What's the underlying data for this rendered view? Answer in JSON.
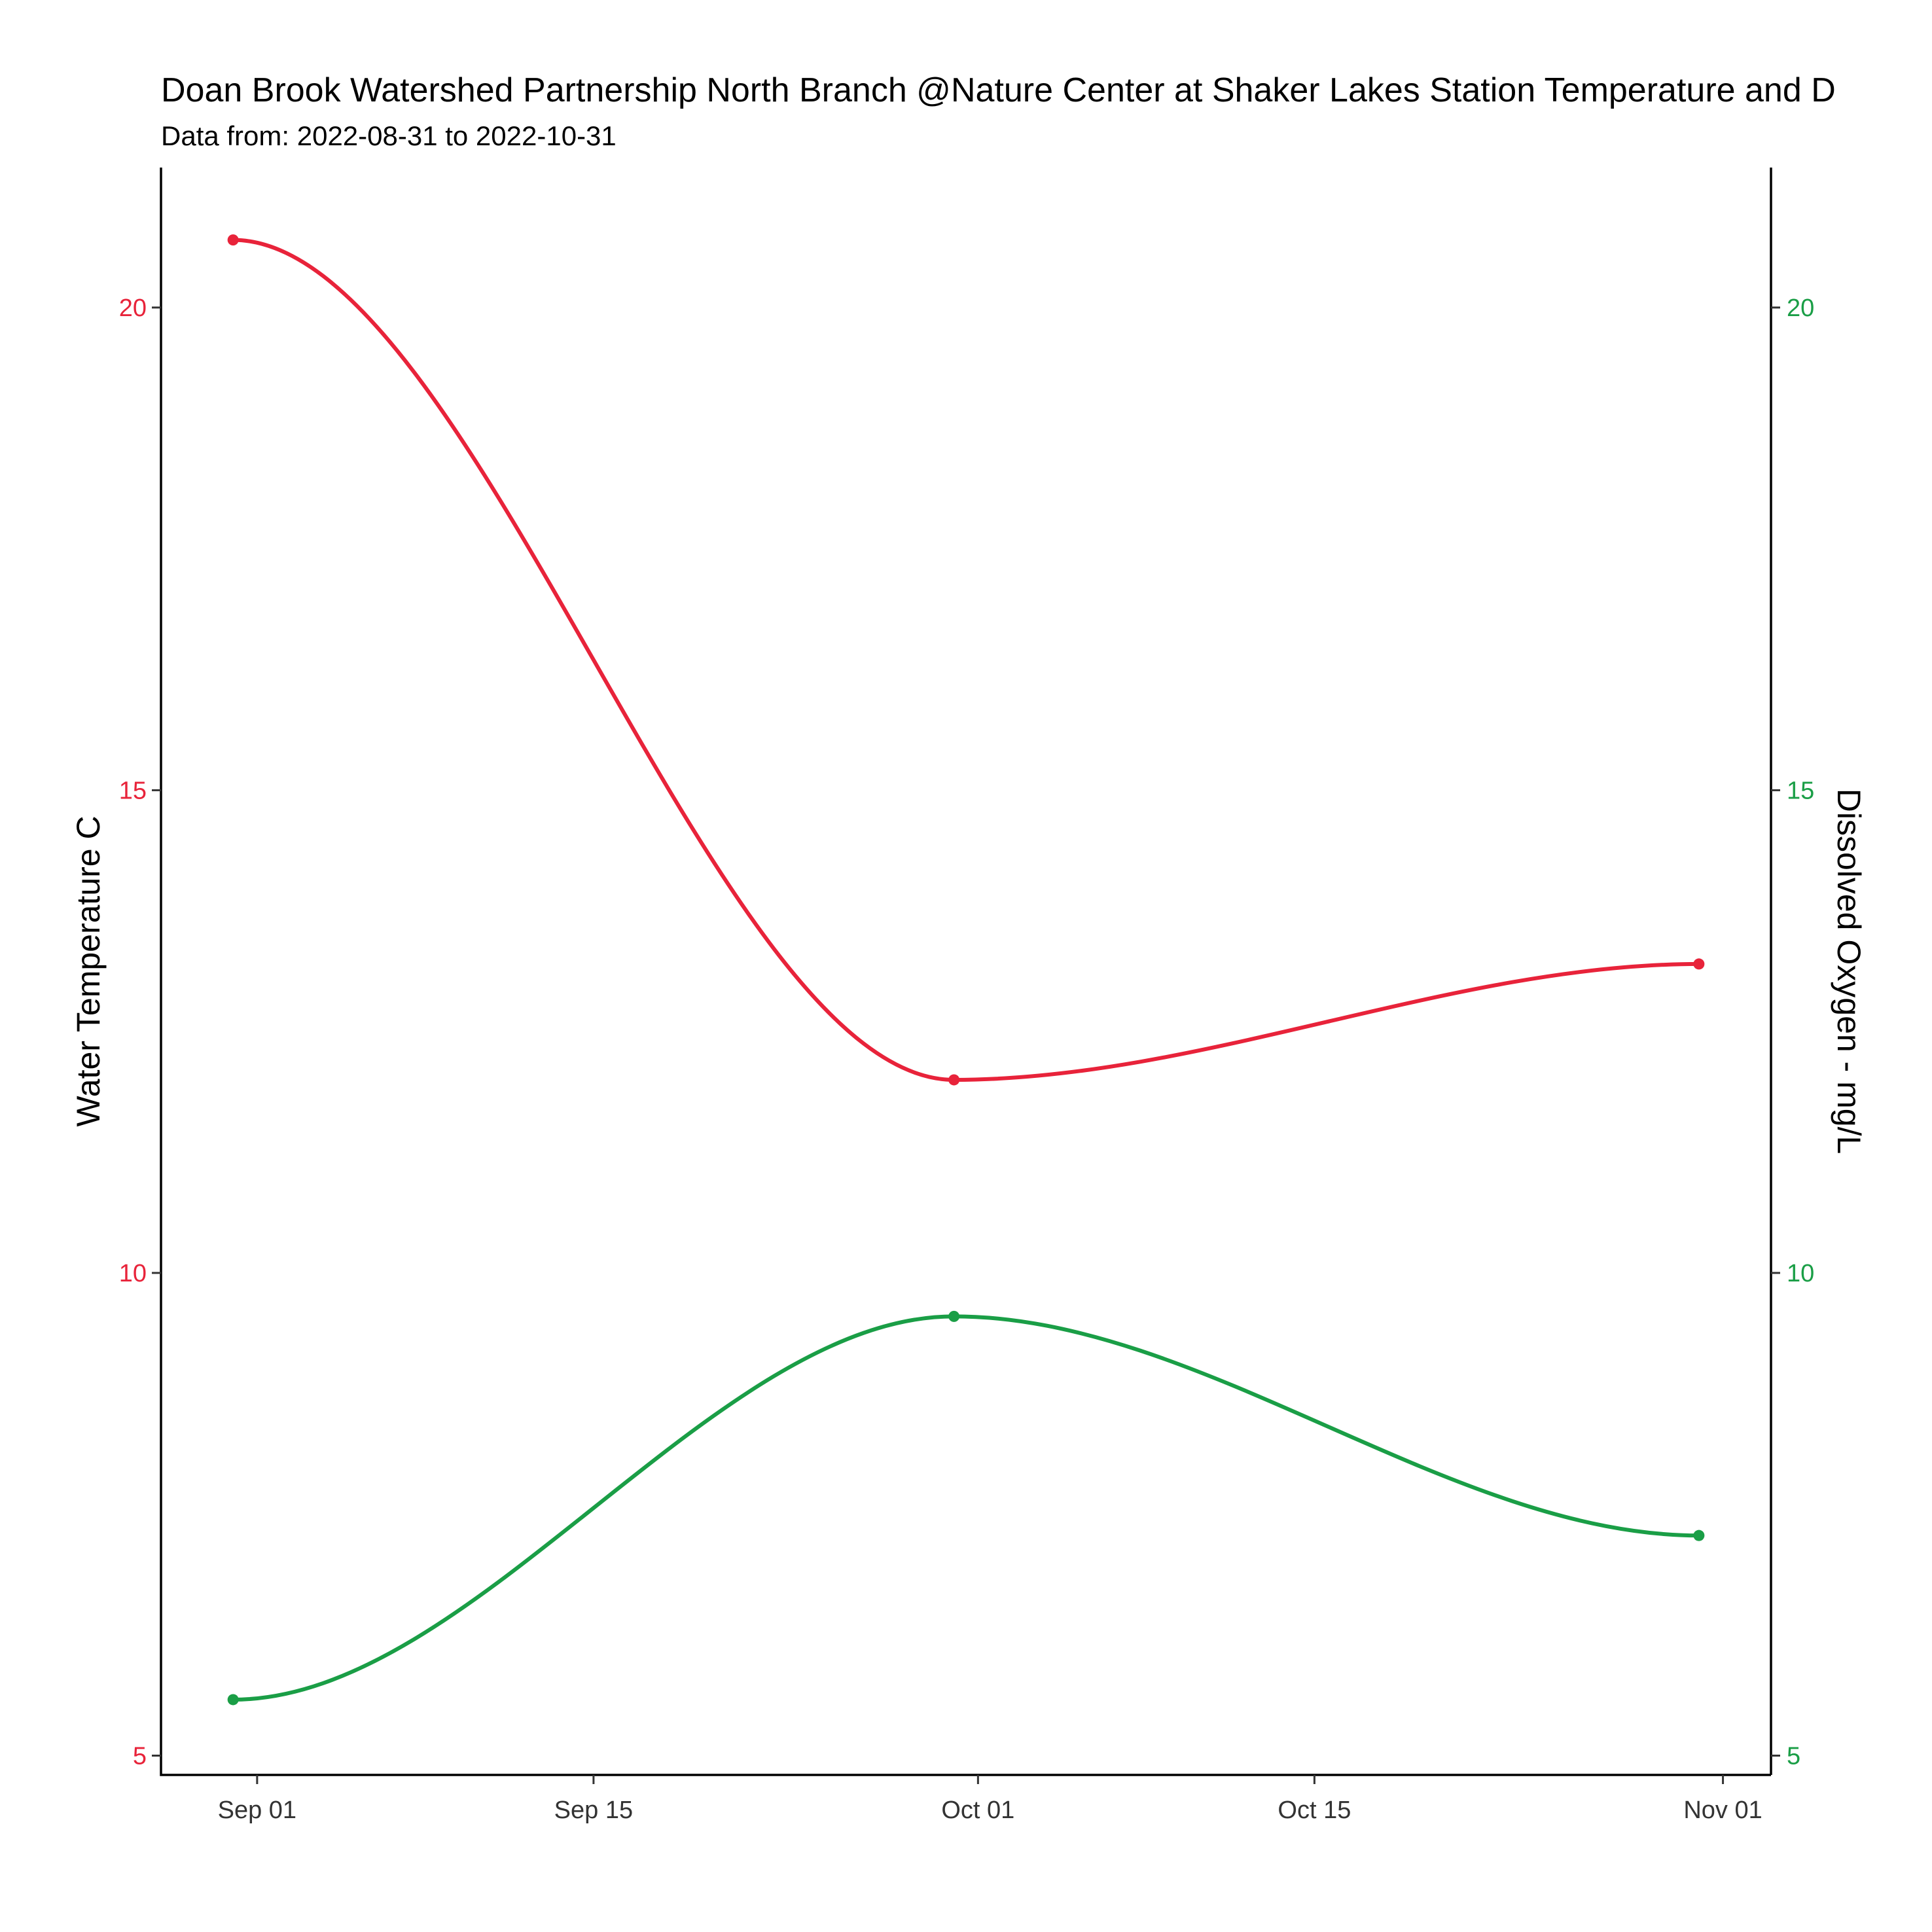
{
  "chart_data": {
    "type": "line",
    "title": "Doan Brook Watershed Partnership North Branch @Nature Center at Shaker Lakes Station Temperature and D",
    "subtitle": "Data from: 2022-08-31 to 2022-10-31",
    "xlabel": "",
    "ylabel_left": "Water Temperature C",
    "ylabel_right": "Dissolved Oxygen - mg/L",
    "x_ticks": [
      {
        "date": "2022-09-01",
        "label": "Sep 01"
      },
      {
        "date": "2022-09-15",
        "label": "Sep 15"
      },
      {
        "date": "2022-10-01",
        "label": "Oct 01"
      },
      {
        "date": "2022-10-15",
        "label": "Oct 15"
      },
      {
        "date": "2022-11-01",
        "label": "Nov 01"
      }
    ],
    "xlim": [
      "2022-08-28",
      "2022-11-03"
    ],
    "y_left": {
      "ticks": [
        5,
        10,
        15,
        20
      ],
      "lim": [
        4.8,
        21.45
      ]
    },
    "y_right": {
      "ticks": [
        5,
        10,
        15,
        20
      ],
      "lim": [
        4.8,
        21.45
      ]
    },
    "series": [
      {
        "key": "temperature",
        "axis": "left",
        "color": "#e8233a",
        "points": [
          {
            "x": "2022-08-31",
            "y": 20.7
          },
          {
            "x": "2022-09-30",
            "y": 12.0
          },
          {
            "x": "2022-10-31",
            "y": 13.2
          }
        ]
      },
      {
        "key": "dissolved_oxygen",
        "axis": "right",
        "color": "#1a9e46",
        "points": [
          {
            "x": "2022-08-31",
            "y": 5.58
          },
          {
            "x": "2022-09-30",
            "y": 9.55
          },
          {
            "x": "2022-10-31",
            "y": 7.28
          }
        ]
      }
    ],
    "grid": false,
    "legend": "none",
    "colors": {
      "left_tick_labels": "#e8233a",
      "right_tick_labels": "#1a9e46",
      "x_tick_labels": "#333333"
    }
  }
}
